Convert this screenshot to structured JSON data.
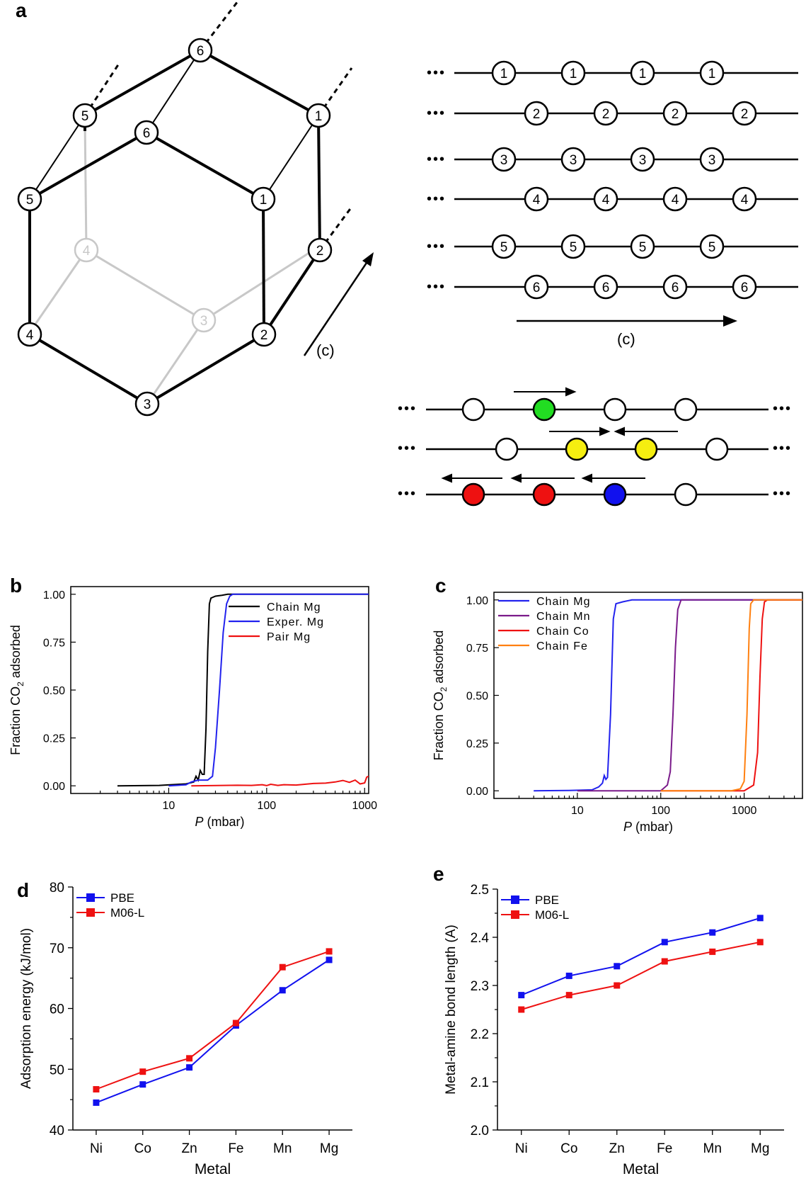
{
  "panels": {
    "a": {
      "letter": "a",
      "axis_label": "(c)",
      "hex_nodes": {
        "top": "6",
        "upper_left": "5",
        "upper_right": "1",
        "front_top": "6",
        "front_left": "5",
        "front_right": "1",
        "back_left": "4",
        "back_right": "3",
        "right_low": "2",
        "front_bottom_left": "4",
        "front_bottom_right": "2",
        "bottom": "3"
      },
      "chain_rows": [
        {
          "label": "1",
          "dots": "•••"
        },
        {
          "label": "2",
          "dots": "•••"
        },
        {
          "label": "3",
          "dots": "•••"
        },
        {
          "label": "4",
          "dots": "•••"
        },
        {
          "label": "5",
          "dots": "•••"
        },
        {
          "label": "6",
          "dots": "•••"
        }
      ],
      "ellipsis": "•••",
      "colors": {
        "green": "#22dd22",
        "yellow": "#f5ee10",
        "red": "#ee1111",
        "blue": "#1111ee",
        "empty": "#ffffff"
      }
    }
  },
  "chart_data": [
    {
      "panel": "b",
      "type": "line",
      "xlabel_italic": "P",
      "xlabel_rest": " (mbar)",
      "ylabel_main": "Fraction CO",
      "ylabel_sub": "2",
      "ylabel_rest": " adsorbed",
      "xscale": "log",
      "xlim": [
        1,
        1100
      ],
      "ylim": [
        -0.04,
        1.04
      ],
      "xticks": [
        {
          "v": 10,
          "label": "10"
        },
        {
          "v": 100,
          "label": "100"
        },
        {
          "v": 1000,
          "label": "1000"
        }
      ],
      "yticks": [
        {
          "v": 0,
          "label": "0.00"
        },
        {
          "v": 0.25,
          "label": "0.25"
        },
        {
          "v": 0.5,
          "label": "0.50"
        },
        {
          "v": 0.75,
          "label": "0.75"
        },
        {
          "v": 1,
          "label": "1.00"
        }
      ],
      "legend_position": "top-right",
      "series": [
        {
          "name": "Chain Mg",
          "color": "#000000",
          "points": [
            [
              3,
              0
            ],
            [
              8,
              0.002
            ],
            [
              15,
              0.01
            ],
            [
              18,
              0.02
            ],
            [
              19,
              0.05
            ],
            [
              20,
              0.03
            ],
            [
              21,
              0.08
            ],
            [
              22,
              0.06
            ],
            [
              23,
              0.06
            ],
            [
              24,
              0.3
            ],
            [
              25,
              0.7
            ],
            [
              26,
              0.95
            ],
            [
              27,
              0.98
            ],
            [
              30,
              0.99
            ],
            [
              35,
              0.995
            ],
            [
              40,
              1
            ],
            [
              1100,
              1
            ]
          ]
        },
        {
          "name": "Exper. Mg",
          "color": "#2222ee",
          "points": [
            [
              10,
              0
            ],
            [
              15,
              0.005
            ],
            [
              17,
              0.02
            ],
            [
              20,
              0.03
            ],
            [
              25,
              0.03
            ],
            [
              28,
              0.05
            ],
            [
              30,
              0.2
            ],
            [
              33,
              0.5
            ],
            [
              36,
              0.8
            ],
            [
              39,
              0.95
            ],
            [
              42,
              0.99
            ],
            [
              45,
              1
            ],
            [
              1100,
              1
            ]
          ]
        },
        {
          "name": "Pair Mg",
          "color": "#ee1111",
          "points": [
            [
              17,
              0
            ],
            [
              50,
              0.003
            ],
            [
              70,
              0.002
            ],
            [
              90,
              0.006
            ],
            [
              100,
              0.001
            ],
            [
              110,
              0.008
            ],
            [
              130,
              0.002
            ],
            [
              150,
              0.006
            ],
            [
              200,
              0.004
            ],
            [
              300,
              0.012
            ],
            [
              400,
              0.014
            ],
            [
              500,
              0.02
            ],
            [
              600,
              0.028
            ],
            [
              700,
              0.018
            ],
            [
              800,
              0.03
            ],
            [
              900,
              0.01
            ],
            [
              1000,
              0.015
            ],
            [
              1050,
              0.045
            ],
            [
              1100,
              0.05
            ]
          ]
        }
      ]
    },
    {
      "panel": "c",
      "type": "line",
      "xlabel_italic": "P",
      "xlabel_rest": " (mbar)",
      "ylabel_main": "Fraction CO",
      "ylabel_sub": "2",
      "ylabel_rest": " adsorbed",
      "xscale": "log",
      "xlim": [
        1,
        5000
      ],
      "ylim": [
        -0.04,
        1.04
      ],
      "xticks": [
        {
          "v": 10,
          "label": "10"
        },
        {
          "v": 100,
          "label": "100"
        },
        {
          "v": 1000,
          "label": "1000"
        }
      ],
      "yticks": [
        {
          "v": 0,
          "label": "0.00"
        },
        {
          "v": 0.25,
          "label": "0.25"
        },
        {
          "v": 0.5,
          "label": "0.50"
        },
        {
          "v": 0.75,
          "label": "0.75"
        },
        {
          "v": 1,
          "label": "1.00"
        }
      ],
      "legend_position": "top-left",
      "series": [
        {
          "name": "Chain Mg",
          "color": "#2222ee",
          "points": [
            [
              3,
              0
            ],
            [
              8,
              0.002
            ],
            [
              15,
              0.005
            ],
            [
              18,
              0.02
            ],
            [
              20,
              0.04
            ],
            [
              21,
              0.08
            ],
            [
              22,
              0.06
            ],
            [
              23,
              0.07
            ],
            [
              25,
              0.4
            ],
            [
              27,
              0.9
            ],
            [
              29,
              0.98
            ],
            [
              35,
              0.99
            ],
            [
              45,
              1
            ],
            [
              5000,
              1
            ]
          ]
        },
        {
          "name": "Chain Mn",
          "color": "#7a1a8a",
          "points": [
            [
              10,
              0
            ],
            [
              100,
              0
            ],
            [
              120,
              0.03
            ],
            [
              130,
              0.1
            ],
            [
              140,
              0.4
            ],
            [
              150,
              0.75
            ],
            [
              160,
              0.95
            ],
            [
              175,
              1
            ],
            [
              5000,
              1
            ]
          ]
        },
        {
          "name": "Chain Co",
          "color": "#ee1111",
          "points": [
            [
              100,
              0
            ],
            [
              1000,
              0
            ],
            [
              1300,
              0.03
            ],
            [
              1450,
              0.2
            ],
            [
              1550,
              0.6
            ],
            [
              1650,
              0.9
            ],
            [
              1750,
              0.99
            ],
            [
              1900,
              1
            ],
            [
              5000,
              1
            ]
          ]
        },
        {
          "name": "Chain Fe",
          "color": "#ff8010",
          "points": [
            [
              100,
              0
            ],
            [
              700,
              0
            ],
            [
              900,
              0.01
            ],
            [
              1000,
              0.05
            ],
            [
              1080,
              0.4
            ],
            [
              1150,
              0.85
            ],
            [
              1200,
              0.98
            ],
            [
              1300,
              1
            ],
            [
              5000,
              1
            ]
          ]
        }
      ]
    },
    {
      "panel": "d",
      "type": "line",
      "xlabel": "Metal",
      "ylabel": "Adsorption energy (kJ/mol)",
      "categories": [
        "Ni",
        "Co",
        "Zn",
        "Fe",
        "Mn",
        "Mg"
      ],
      "ylim": [
        40,
        80
      ],
      "yticks": [
        {
          "v": 40,
          "label": "40"
        },
        {
          "v": 50,
          "label": "50"
        },
        {
          "v": 60,
          "label": "60"
        },
        {
          "v": 70,
          "label": "70"
        },
        {
          "v": 80,
          "label": "80"
        }
      ],
      "legend_position": "top-left",
      "series": [
        {
          "name": "PBE",
          "color": "#1111ee",
          "values": [
            44.5,
            47.5,
            50.3,
            57.2,
            63.0,
            68.0
          ]
        },
        {
          "name": "M06-L",
          "color": "#ee1111",
          "values": [
            46.7,
            49.6,
            51.8,
            57.6,
            66.8,
            69.4
          ]
        }
      ]
    },
    {
      "panel": "e",
      "type": "line",
      "xlabel": "Metal",
      "ylabel": "Metal-amine bond length (A)",
      "categories": [
        "Ni",
        "Co",
        "Zn",
        "Fe",
        "Mn",
        "Mg"
      ],
      "ylim": [
        2.0,
        2.5
      ],
      "yticks": [
        {
          "v": 2.0,
          "label": "2.0"
        },
        {
          "v": 2.1,
          "label": "2.1"
        },
        {
          "v": 2.2,
          "label": "2.2"
        },
        {
          "v": 2.3,
          "label": "2.3"
        },
        {
          "v": 2.4,
          "label": "2.4"
        },
        {
          "v": 2.5,
          "label": "2.5"
        }
      ],
      "legend_position": "top-left",
      "series": [
        {
          "name": "PBE",
          "color": "#1111ee",
          "values": [
            2.28,
            2.32,
            2.34,
            2.39,
            2.41,
            2.44
          ]
        },
        {
          "name": "M06-L",
          "color": "#ee1111",
          "values": [
            2.25,
            2.28,
            2.3,
            2.35,
            2.37,
            2.39
          ]
        }
      ]
    }
  ]
}
